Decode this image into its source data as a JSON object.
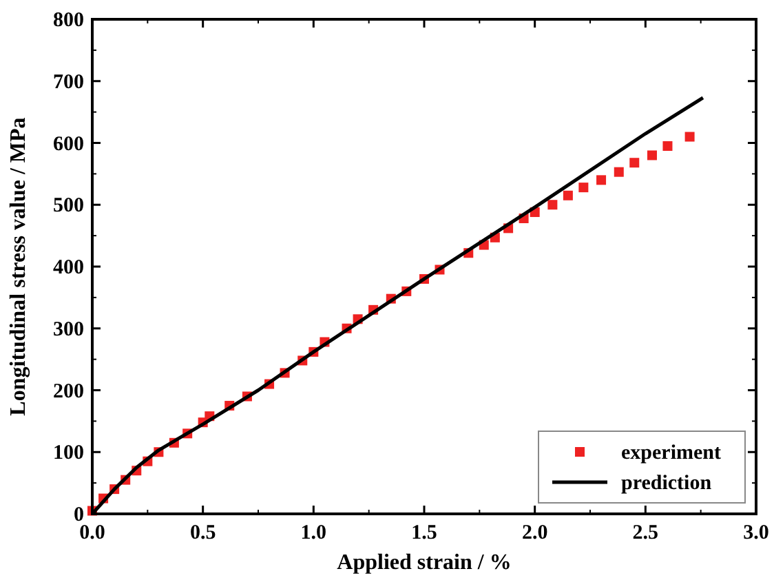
{
  "chart_data": {
    "type": "scatter",
    "xlabel": "Applied strain / %",
    "ylabel": "Longitudinal stress value / MPa",
    "xlim": [
      0,
      3
    ],
    "xticks": [
      {
        "value": 0,
        "label": "0.0"
      },
      {
        "value": 0.5,
        "label": "0.5"
      },
      {
        "value": 1,
        "label": "1.0"
      },
      {
        "value": 1.5,
        "label": "1.5"
      },
      {
        "value": 2,
        "label": "2.0"
      },
      {
        "value": 2.5,
        "label": "2.5"
      },
      {
        "value": 3,
        "label": "3.0"
      }
    ],
    "ylim": [
      0,
      800
    ],
    "yticks": [
      0,
      100,
      200,
      300,
      400,
      500,
      600,
      700,
      800
    ],
    "grid": false,
    "legend": "bottom right",
    "series": [
      {
        "name": "experiment",
        "marker": "square",
        "color": "#ee2222",
        "x": [
          0.0,
          0.05,
          0.1,
          0.15,
          0.2,
          0.25,
          0.3,
          0.37,
          0.43,
          0.5,
          0.53,
          0.62,
          0.7,
          0.8,
          0.87,
          0.95,
          1.0,
          1.05,
          1.15,
          1.2,
          1.27,
          1.35,
          1.42,
          1.5,
          1.57,
          1.7,
          1.77,
          1.82,
          1.88,
          1.95,
          2.0,
          2.08,
          2.15,
          2.22,
          2.3,
          2.38,
          2.45,
          2.53,
          2.6,
          2.7
        ],
        "values": [
          5,
          25,
          40,
          55,
          70,
          85,
          100,
          115,
          130,
          148,
          158,
          175,
          190,
          210,
          228,
          248,
          262,
          278,
          300,
          315,
          330,
          348,
          360,
          380,
          395,
          422,
          435,
          447,
          462,
          478,
          488,
          500,
          515,
          528,
          540,
          553,
          568,
          580,
          595,
          610
        ]
      },
      {
        "name": "prediction",
        "type": "line",
        "marker": "none",
        "line_style": "solid",
        "color": "#000000",
        "x": [
          0,
          0.1,
          0.2,
          0.3,
          0.5,
          0.75,
          1.0,
          1.5,
          2.0,
          2.5,
          2.76
        ],
        "values": [
          0,
          40,
          75,
          103,
          145,
          200,
          262,
          380,
          496,
          615,
          673
        ]
      }
    ]
  }
}
